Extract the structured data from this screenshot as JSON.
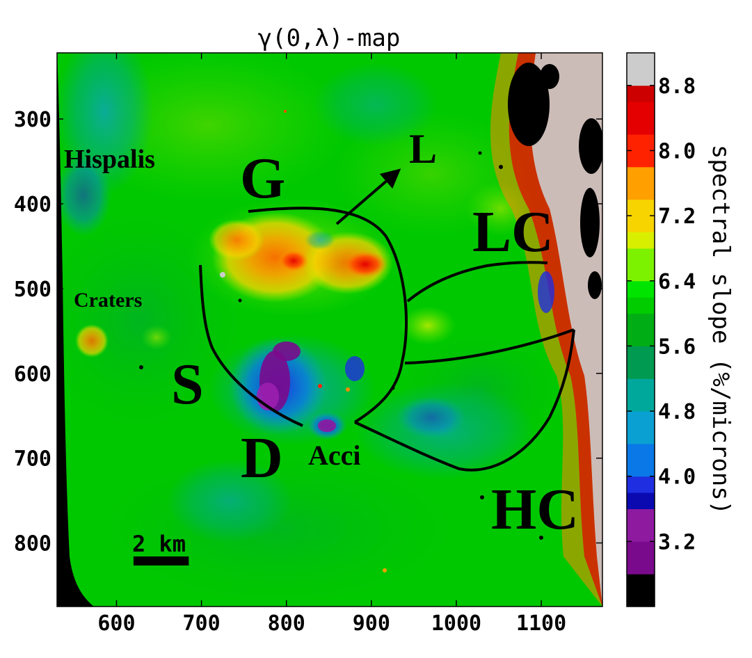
{
  "chart_data": {
    "type": "heatmap",
    "title": "γ(0,λ)-map",
    "xlabel": "",
    "ylabel": "",
    "xlim": [
      530,
      1172
    ],
    "ylim": [
      875,
      222
    ],
    "x_ticks": [
      600,
      700,
      800,
      900,
      1000,
      1100
    ],
    "x_tick_labels": [
      "600",
      "700",
      "800",
      "900",
      "1000",
      "1100"
    ],
    "y_ticks": [
      300,
      400,
      500,
      600,
      700,
      800
    ],
    "y_tick_labels": [
      "300",
      "400",
      "500",
      "600",
      "700",
      "800"
    ],
    "colorbar": {
      "label": "spectral slope (%/microns)",
      "range": [
        2.4,
        9.2
      ],
      "ticks": [
        8.8,
        8.0,
        7.2,
        6.4,
        5.6,
        4.8,
        4.0,
        3.2
      ],
      "tick_labels": [
        "8.8",
        "8.0",
        "7.2",
        "6.4",
        "5.6",
        "4.8",
        "4.0",
        "3.2"
      ],
      "levels": [
        {
          "from": 2.4,
          "to": 2.8,
          "color": "#000000"
        },
        {
          "from": 2.8,
          "to": 3.2,
          "color": "#7a0a8c"
        },
        {
          "from": 3.2,
          "to": 3.6,
          "color": "#8e1aa0"
        },
        {
          "from": 3.6,
          "to": 3.8,
          "color": "#0a0ab0"
        },
        {
          "from": 3.8,
          "to": 4.0,
          "color": "#1f2ee0"
        },
        {
          "from": 4.0,
          "to": 4.4,
          "color": "#0a78e6"
        },
        {
          "from": 4.4,
          "to": 4.8,
          "color": "#0aa0d2"
        },
        {
          "from": 4.8,
          "to": 5.2,
          "color": "#00a89c"
        },
        {
          "from": 5.2,
          "to": 5.6,
          "color": "#009a50"
        },
        {
          "from": 5.6,
          "to": 6.0,
          "color": "#00ad14"
        },
        {
          "from": 6.0,
          "to": 6.2,
          "color": "#00cc00"
        },
        {
          "from": 6.2,
          "to": 6.4,
          "color": "#00e400"
        },
        {
          "from": 6.4,
          "to": 6.8,
          "color": "#7cf200"
        },
        {
          "from": 6.8,
          "to": 7.0,
          "color": "#d8f000"
        },
        {
          "from": 7.0,
          "to": 7.4,
          "color": "#f7d400"
        },
        {
          "from": 7.4,
          "to": 7.8,
          "color": "#ffa000"
        },
        {
          "from": 7.8,
          "to": 8.2,
          "color": "#ff2200"
        },
        {
          "from": 8.2,
          "to": 8.6,
          "color": "#e40000"
        },
        {
          "from": 8.6,
          "to": 8.8,
          "color": "#cc0000"
        },
        {
          "from": 8.8,
          "to": 9.2,
          "color": "#cccccc"
        }
      ]
    },
    "annotations": [
      {
        "text": "Hispalis",
        "x": 605,
        "y": 348
      },
      {
        "text": "Craters",
        "x": 590,
        "y": 515
      },
      {
        "text": "G",
        "x": 780,
        "y": 388
      },
      {
        "text": "L",
        "x": 968,
        "y": 345
      },
      {
        "text": "LC",
        "x": 1085,
        "y": 463
      },
      {
        "text": "S",
        "x": 683,
        "y": 640
      },
      {
        "text": "D",
        "x": 790,
        "y": 705
      },
      {
        "text": "Acci",
        "x": 884,
        "y": 694
      },
      {
        "text": "HC",
        "x": 1096,
        "y": 772
      }
    ],
    "scale_bar": {
      "label": "2 km",
      "x_start": 620,
      "x_end": 685,
      "y": 820
    }
  }
}
